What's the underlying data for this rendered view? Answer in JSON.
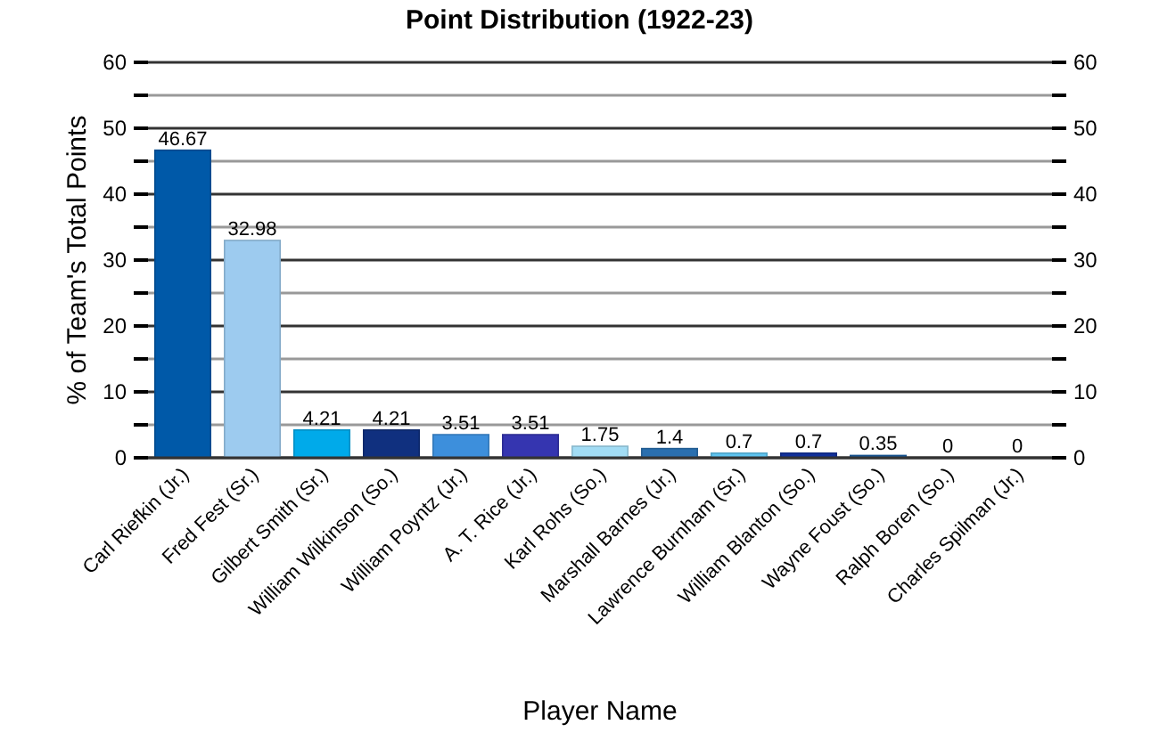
{
  "chart_data": {
    "type": "bar",
    "title": "Point Distribution (1922-23)",
    "xlabel": "Player Name",
    "ylabel": "% of Team's Total Points",
    "categories": [
      "Carl Riefkin (Jr.)",
      "Fred Fest (Sr.)",
      "Gilbert Smith (Sr.)",
      "William Wilkinson (So.)",
      "William Poyntz (Jr.)",
      "A. T. Rice (Jr.)",
      "Karl Rohs (So.)",
      "Marshall Barnes (Jr.)",
      "Lawrence Burnham (Sr.)",
      "William Blanton (So.)",
      "Wayne Foust (So.)",
      "Ralph Boren (So.)",
      "Charles Spilman (Jr.)"
    ],
    "values": [
      46.67,
      32.98,
      4.21,
      4.21,
      3.51,
      3.51,
      1.75,
      1.4,
      0.7,
      0.7,
      0.35,
      0,
      0
    ],
    "colors": [
      "#0059a8",
      "#9dcbef",
      "#00aaea",
      "#10307f",
      "#3d8fdc",
      "#3535b0",
      "#a2dcf4",
      "#2a6faf",
      "#5ec4f0",
      "#10309a",
      "#1860a8",
      "#2f4f9f",
      "#4a90d0"
    ],
    "data_labels": true,
    "ylim": [
      0,
      60
    ],
    "yticks": [
      0,
      {
        "value": 5,
        "label": null
      },
      10,
      {
        "value": 15,
        "label": null
      },
      20,
      {
        "value": 25,
        "label": null
      },
      30,
      {
        "value": 35,
        "label": null
      },
      40,
      {
        "value": 45,
        "label": null
      },
      50,
      {
        "value": 55,
        "label": null
      },
      60
    ],
    "y2lim": [
      0,
      60
    ],
    "y2ticks": [
      0,
      {
        "value": 5,
        "label": null
      },
      10,
      {
        "value": 15,
        "label": null
      },
      20,
      {
        "value": 25,
        "label": null
      },
      30,
      {
        "value": 35,
        "label": null
      },
      40,
      {
        "value": 45,
        "label": null
      },
      50,
      {
        "value": 55,
        "label": null
      },
      60
    ],
    "grid": true
  }
}
